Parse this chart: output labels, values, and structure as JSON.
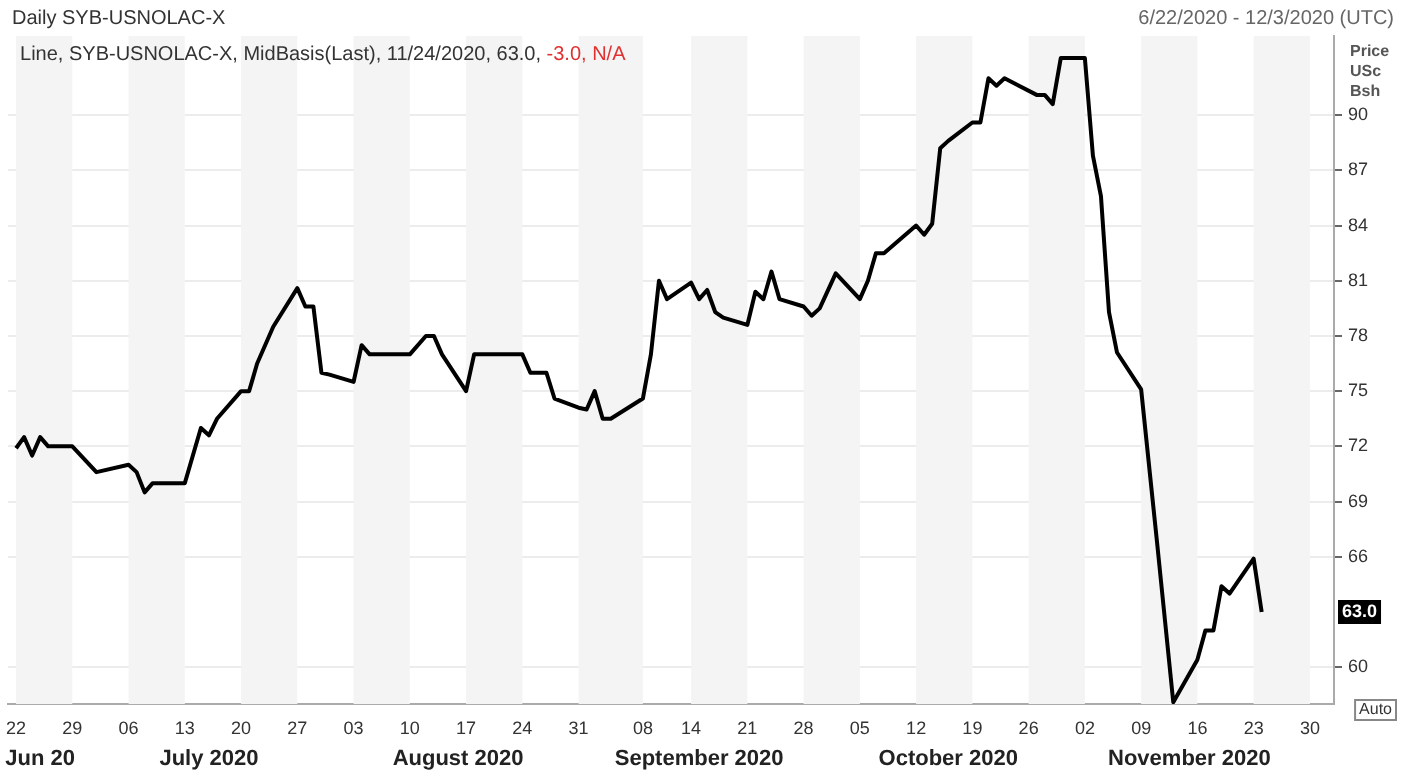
{
  "chart_data": {
    "type": "line",
    "title": "Daily SYB-USNOLAC-X",
    "subtitle": "Line, SYB-USNOLAC-X, MidBasis(Last), 11/24/2020, 63.0, -3.0, N/A",
    "ylabel": "Price USc Bsh",
    "annotations": [
      "6/22/2020 - 12/3/2020 (UTC)",
      "Auto",
      "63.0"
    ],
    "x2lim": [
      "2020-06-21",
      "2020-12-03"
    ],
    "x2ticks": [
      {
        "value": "2020-06-25",
        "label": "Jun 20"
      },
      {
        "value": "2020-07-16",
        "label": "July 2020"
      },
      {
        "value": "2020-08-16",
        "label": "August 2020"
      },
      {
        "value": "2020-09-15",
        "label": "September 2020"
      },
      {
        "value": "2020-10-16",
        "label": "October 2020"
      },
      {
        "value": "2020-11-15",
        "label": "November 2020"
      }
    ],
    "x": [
      "2020-06-22",
      "2020-06-23",
      "2020-06-24",
      "2020-06-25",
      "2020-06-26",
      "2020-06-29",
      "2020-07-02",
      "2020-07-06",
      "2020-07-07",
      "2020-07-08",
      "2020-07-09",
      "2020-07-13",
      "2020-07-15",
      "2020-07-16",
      "2020-07-17",
      "2020-07-20",
      "2020-07-21",
      "2020-07-22",
      "2020-07-24",
      "2020-07-27",
      "2020-07-28",
      "2020-07-29",
      "2020-07-30",
      "2020-07-31",
      "2020-08-03",
      "2020-08-04",
      "2020-08-05",
      "2020-08-10",
      "2020-08-12",
      "2020-08-13",
      "2020-08-14",
      "2020-08-17",
      "2020-08-18",
      "2020-08-24",
      "2020-08-25",
      "2020-08-27",
      "2020-08-28",
      "2020-08-31",
      "2020-09-01",
      "2020-09-02",
      "2020-09-03",
      "2020-09-04",
      "2020-09-08",
      "2020-09-09",
      "2020-09-10",
      "2020-09-11",
      "2020-09-14",
      "2020-09-15",
      "2020-09-16",
      "2020-09-17",
      "2020-09-18",
      "2020-09-21",
      "2020-09-22",
      "2020-09-23",
      "2020-09-24",
      "2020-09-25",
      "2020-09-28",
      "2020-09-29",
      "2020-09-30",
      "2020-10-02",
      "2020-10-05",
      "2020-10-06",
      "2020-10-07",
      "2020-10-08",
      "2020-10-12",
      "2020-10-13",
      "2020-10-14",
      "2020-10-15",
      "2020-10-16",
      "2020-10-19",
      "2020-10-20",
      "2020-10-21",
      "2020-10-22",
      "2020-10-23",
      "2020-10-27",
      "2020-10-28",
      "2020-10-29",
      "2020-10-30",
      "2020-11-02",
      "2020-11-03",
      "2020-11-04",
      "2020-11-05",
      "2020-11-06",
      "2020-11-09",
      "2020-11-11",
      "2020-11-13",
      "2020-11-16",
      "2020-11-17",
      "2020-11-18",
      "2020-11-19",
      "2020-11-20",
      "2020-11-23",
      "2020-11-24"
    ],
    "series": [
      {
        "color": "#000000",
        "values": [
          71.9,
          72.5,
          71.5,
          72.5,
          72.0,
          72.0,
          70.6,
          71.0,
          70.6,
          69.5,
          70.0,
          70.0,
          73.0,
          72.6,
          73.5,
          75.0,
          75.0,
          76.5,
          78.5,
          80.6,
          79.6,
          79.6,
          76.0,
          75.9,
          75.5,
          77.5,
          77.0,
          77.0,
          78.0,
          78.0,
          77.0,
          75.0,
          77.0,
          77.0,
          76.0,
          76.0,
          74.6,
          74.1,
          74.0,
          75.0,
          73.5,
          73.5,
          74.6,
          77.0,
          81.0,
          80.0,
          80.9,
          80.0,
          80.5,
          79.3,
          79.0,
          78.6,
          80.4,
          80.0,
          81.5,
          80.0,
          79.6,
          79.1,
          79.5,
          81.4,
          80.0,
          81.0,
          82.5,
          82.5,
          84.0,
          83.5,
          84.1,
          88.2,
          88.6,
          89.6,
          89.6,
          92.0,
          91.6,
          92.0,
          91.1,
          91.1,
          90.6,
          93.1,
          93.1,
          87.8,
          85.6,
          79.3,
          77.1,
          75.1,
          66.7,
          58.1,
          60.4,
          62.0,
          62.0,
          64.4,
          64.0,
          65.9,
          63.0
        ]
      }
    ],
    "xlim": [
      "2020-06-21",
      "2020-12-03"
    ],
    "xticks": [
      {
        "value": "2020-06-22",
        "label": "22"
      },
      {
        "value": "2020-06-29",
        "label": "29"
      },
      {
        "value": "2020-07-06",
        "label": "06"
      },
      {
        "value": "2020-07-13",
        "label": "13"
      },
      {
        "value": "2020-07-20",
        "label": "20"
      },
      {
        "value": "2020-07-27",
        "label": "27"
      },
      {
        "value": "2020-08-03",
        "label": "03"
      },
      {
        "value": "2020-08-10",
        "label": "10"
      },
      {
        "value": "2020-08-17",
        "label": "17"
      },
      {
        "value": "2020-08-24",
        "label": "24"
      },
      {
        "value": "2020-08-31",
        "label": "31"
      },
      {
        "value": "2020-09-08",
        "label": "08"
      },
      {
        "value": "2020-09-14",
        "label": "14"
      },
      {
        "value": "2020-09-21",
        "label": "21"
      },
      {
        "value": "2020-09-28",
        "label": "28"
      },
      {
        "value": "2020-10-05",
        "label": "05"
      },
      {
        "value": "2020-10-12",
        "label": "12"
      },
      {
        "value": "2020-10-19",
        "label": "19"
      },
      {
        "value": "2020-10-26",
        "label": "26"
      },
      {
        "value": "2020-11-02",
        "label": "02"
      },
      {
        "value": "2020-11-09",
        "label": "09"
      },
      {
        "value": "2020-11-16",
        "label": "16"
      },
      {
        "value": "2020-11-23",
        "label": "23"
      },
      {
        "value": "2020-11-30",
        "label": "30"
      }
    ],
    "ylim": [
      58,
      94.3
    ],
    "yticks": [
      60,
      66,
      69,
      72,
      75,
      78,
      81,
      84,
      87,
      90
    ],
    "grid": true,
    "legend": false,
    "marker": "none",
    "line_style": "solid"
  }
}
